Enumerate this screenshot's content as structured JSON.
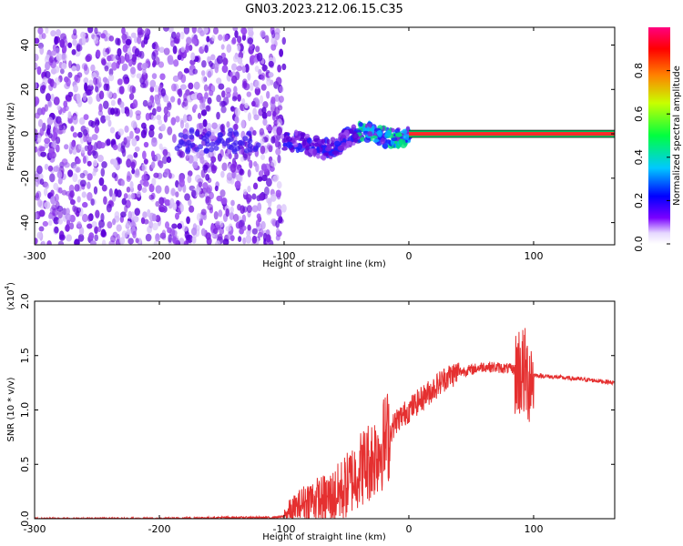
{
  "title": "GN03.2023.212.06.15.C35",
  "colors": {
    "scatter_purple": "#7a1fe0",
    "snr_line": "#e53030"
  },
  "chart_data": [
    {
      "type": "heatmap",
      "title": "GN03.2023.212.06.15.C35",
      "xlabel": "Height of straight line (km)",
      "ylabel": "Frequency (Hz)",
      "xlim": [
        -300,
        165
      ],
      "ylim": [
        -50,
        48
      ],
      "x_ticks": [
        "-300",
        "-200",
        "-100",
        "0",
        "100"
      ],
      "y_ticks": [
        "40",
        "20",
        "0",
        "-20",
        "-40"
      ],
      "colorbar": {
        "label": "Normalized spectral amplitude",
        "range": [
          0,
          1
        ],
        "ticks": [
          "0.0",
          "0.2",
          "0.4",
          "0.6",
          "0.8"
        ],
        "colormap": "rainbow"
      },
      "features": {
        "noise_region_x": [
          -300,
          -100
        ],
        "signal_band_freq_hz": 0,
        "signal_band_x": [
          0,
          165
        ],
        "signal_onset_x": -100
      }
    },
    {
      "type": "line",
      "xlabel": "Height of straight line (km)",
      "ylabel": "SNR (10 * v/v)",
      "multiplier_label": "(x10",
      "multiplier_exp": "4",
      "multiplier_close": ")",
      "xlim": [
        -300,
        165
      ],
      "ylim": [
        0,
        2.0
      ],
      "x_ticks": [
        "-300",
        "-200",
        "-100",
        "0",
        "100"
      ],
      "y_ticks": [
        "0.0",
        "0.5",
        "1.0",
        "1.5",
        "2.0"
      ],
      "grid": false,
      "series": [
        {
          "x": [
            -300,
            -250,
            -200,
            -150,
            -110,
            -100,
            -90,
            -80,
            -70,
            -60,
            -50,
            -40,
            -30,
            -20,
            -10,
            0,
            10,
            20,
            30,
            40,
            50,
            60,
            70,
            80,
            90,
            95,
            100,
            110,
            120,
            130,
            140,
            150,
            165
          ],
          "y": [
            0.0,
            0.0,
            0.0,
            0.01,
            0.01,
            0.02,
            0.1,
            0.18,
            0.17,
            0.2,
            0.3,
            0.45,
            0.55,
            0.7,
            0.9,
            1.0,
            1.1,
            1.2,
            1.3,
            1.35,
            1.37,
            1.4,
            1.39,
            1.38,
            1.36,
            1.3,
            1.32,
            1.31,
            1.3,
            1.29,
            1.28,
            1.27,
            1.25
          ]
        }
      ]
    }
  ]
}
